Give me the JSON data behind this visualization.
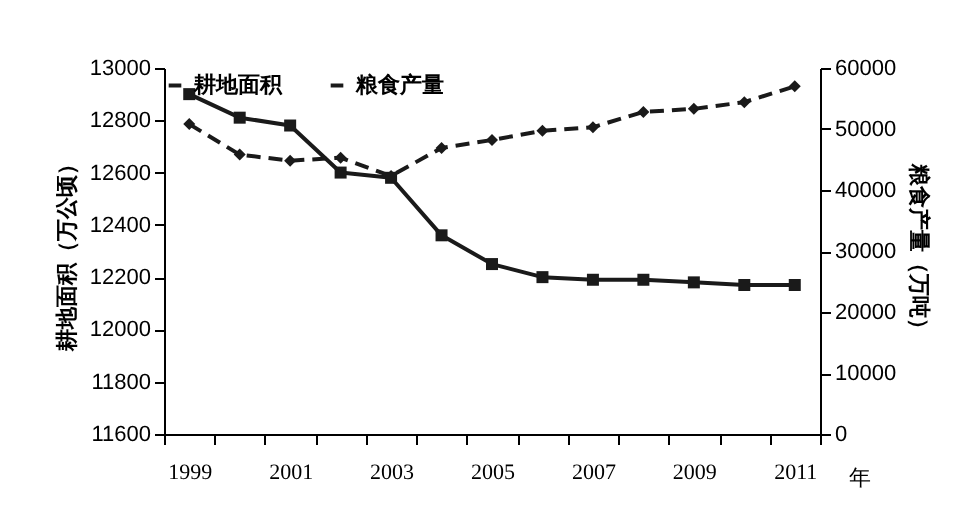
{
  "chart_data": {
    "type": "line",
    "categories": [
      "1999",
      null,
      "2001",
      null,
      "2003",
      null,
      "2005",
      null,
      "2007",
      null,
      "2009",
      null,
      "2011"
    ],
    "xlabel": "年",
    "ylabel": "耕地面积（万公顷）",
    "y2label": "粮食产量（万吨）",
    "ylim": [
      11600,
      13000
    ],
    "yticks": [
      11600,
      11800,
      12000,
      12200,
      12400,
      12600,
      12800,
      13000
    ],
    "y2lim": [
      0,
      60000
    ],
    "y2ticks": [
      0,
      10000,
      20000,
      30000,
      40000,
      50000,
      60000
    ],
    "grid": false,
    "legend": "top",
    "series": [
      {
        "name": "耕地面积",
        "color": "#1a1a1a",
        "marker": "square",
        "line_style": "solid",
        "values": [
          12900,
          12810,
          12780,
          12600,
          12580,
          12360,
          12250,
          12200,
          12190,
          12190,
          12180,
          12170,
          12170
        ]
      },
      {
        "name": "粮食产量",
        "color": "#1a1a1a",
        "marker": "diamond",
        "line_style": "dashed",
        "axis": "y2",
        "values": [
          50800,
          45800,
          44800,
          45300,
          42300,
          46900,
          48200,
          49700,
          50300,
          52800,
          53300,
          54400,
          57000
        ]
      }
    ]
  }
}
